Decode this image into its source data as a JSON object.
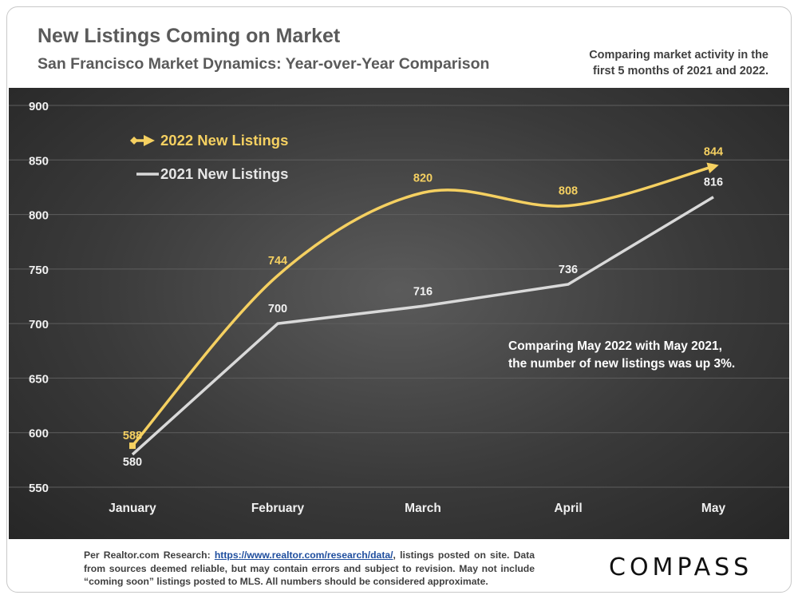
{
  "header": {
    "title": "New Listings Coming on Market",
    "subtitle": "San Francisco Market Dynamics: Year-over-Year Comparison",
    "note": "Comparing market activity in the first 5 months of 2021 and 2022."
  },
  "chart_data": {
    "type": "line",
    "categories": [
      "January",
      "February",
      "March",
      "April",
      "May"
    ],
    "series": [
      {
        "name": "2022 New Listings",
        "values": [
          588,
          744,
          820,
          808,
          844
        ],
        "color": "#f5d061",
        "smooth": true
      },
      {
        "name": "2021 New Listings",
        "values": [
          580,
          700,
          716,
          736,
          816
        ],
        "color": "#d9d9d9",
        "smooth": false
      }
    ],
    "ylim": [
      550,
      900
    ],
    "yticks": [
      550,
      600,
      650,
      700,
      750,
      800,
      850,
      900
    ],
    "grid": true,
    "legend": "top-left",
    "annotation": "Comparing May 2022 with May 2021, the number of new listings was up 3%.",
    "annotation_lines": [
      "Comparing May 2022 with May 2021,",
      "the number of new listings was up 3%."
    ]
  },
  "footer": {
    "prefix": "Per Realtor.com Research:",
    "link": "https://www.realtor.com/research/data/",
    "suffix": ", listings posted on site. Data from sources deemed reliable, but may contain errors and subject to revision. May not include “coming soon” listings posted to MLS. All numbers should be considered approximate."
  },
  "brand": {
    "logo": "COMPASS"
  },
  "colors": {
    "accent_2022": "#f5d061",
    "line_2021": "#d9d9d9",
    "background": "#3a3a3a"
  }
}
